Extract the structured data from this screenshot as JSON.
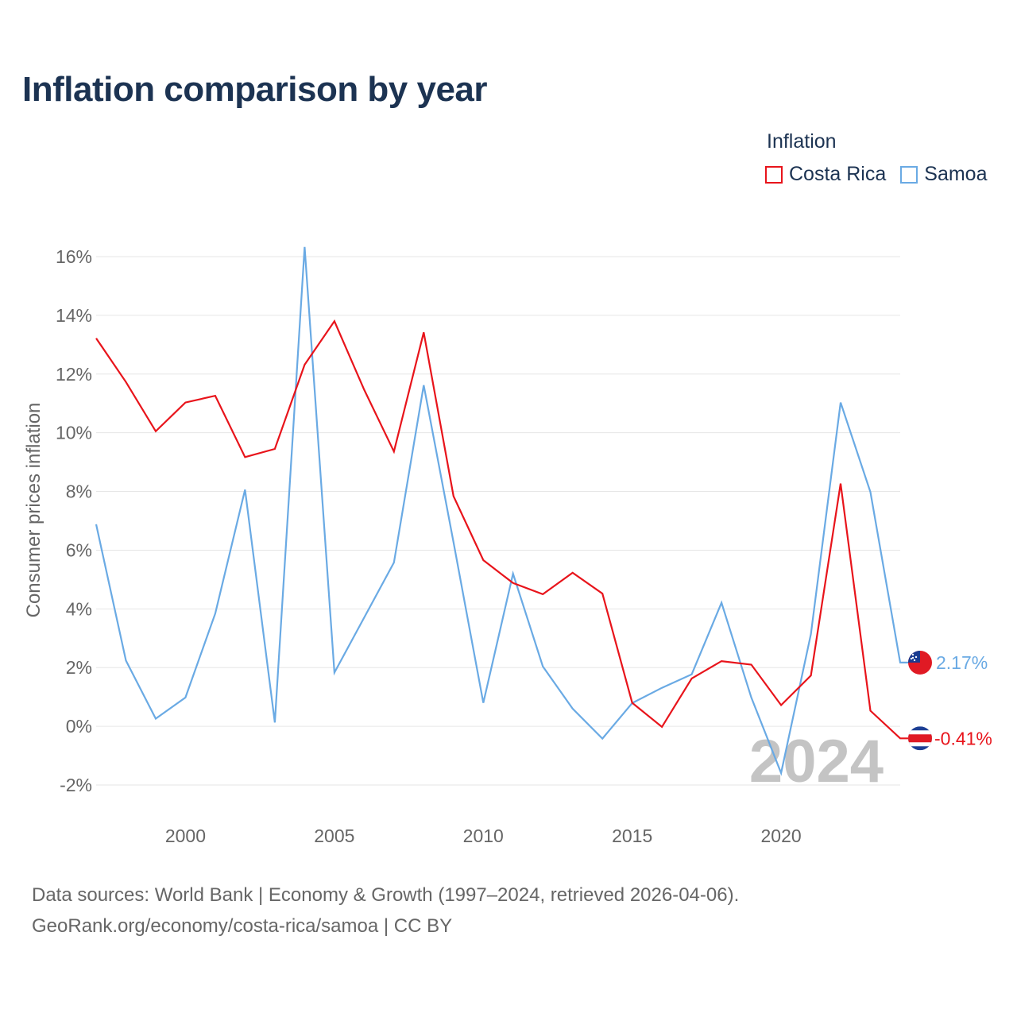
{
  "header": {
    "title": "Inflation comparison by year"
  },
  "legend": {
    "title": "Inflation",
    "items": [
      {
        "name": "Costa Rica",
        "color": "#e8141b"
      },
      {
        "name": "Samoa",
        "color": "#6aaae4"
      }
    ]
  },
  "footer": {
    "source_line1": "Data sources: World Bank | Economy & Growth (1997–2024, retrieved 2026-04-06).",
    "source_line2": "GeoRank.org/economy/costa-rica/samoa | CC BY"
  },
  "chart_data": {
    "type": "line",
    "title": "Inflation comparison by year",
    "xlabel": "",
    "ylabel": "Consumer prices inflation",
    "xlim": [
      1997,
      2024
    ],
    "ylim": [
      -3,
      17
    ],
    "xticks": [
      2000,
      2005,
      2010,
      2015,
      2020
    ],
    "yticks": [
      -2,
      0,
      2,
      4,
      6,
      8,
      10,
      12,
      14,
      16
    ],
    "ytick_labels": [
      "-2%",
      "0%",
      "2%",
      "4%",
      "6%",
      "8%",
      "10%",
      "12%",
      "14%",
      "16%"
    ],
    "grid": true,
    "year_watermark": "2024",
    "x": [
      1997,
      1998,
      1999,
      2000,
      2001,
      2002,
      2003,
      2004,
      2005,
      2006,
      2007,
      2008,
      2009,
      2010,
      2011,
      2012,
      2013,
      2014,
      2015,
      2016,
      2017,
      2018,
      2019,
      2020,
      2021,
      2022,
      2023,
      2024
    ],
    "series": [
      {
        "name": "Costa Rica",
        "color": "#e8141b",
        "end_label": "-0.41%",
        "flag": "costa-rica-flag",
        "values": [
          13.22,
          11.73,
          10.05,
          11.03,
          11.26,
          9.17,
          9.45,
          12.32,
          13.8,
          11.47,
          9.36,
          13.42,
          7.84,
          5.66,
          4.88,
          4.5,
          5.23,
          4.52,
          0.8,
          -0.02,
          1.63,
          2.22,
          2.1,
          0.72,
          1.73,
          8.27,
          0.53,
          -0.41
        ]
      },
      {
        "name": "Samoa",
        "color": "#6aaae4",
        "end_label": "2.17%",
        "flag": "samoa-flag",
        "values": [
          6.88,
          2.24,
          0.26,
          0.98,
          3.84,
          8.06,
          0.13,
          16.33,
          1.83,
          3.7,
          5.58,
          11.62,
          6.27,
          0.8,
          5.2,
          2.04,
          0.6,
          -0.42,
          0.79,
          1.31,
          1.77,
          4.21,
          0.98,
          -1.59,
          3.14,
          11.03,
          7.98,
          2.17
        ]
      }
    ]
  }
}
